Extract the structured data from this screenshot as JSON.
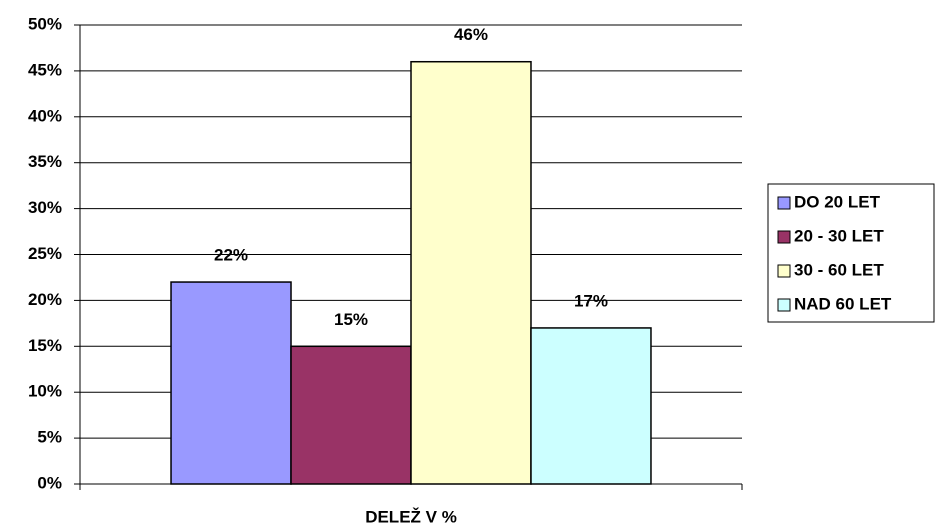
{
  "chart_data": {
    "type": "bar",
    "categories": [
      "DELEŽ V %"
    ],
    "series": [
      {
        "name": "DO 20 LET",
        "color": "#9999ff",
        "values": [
          22
        ],
        "value_labels": [
          "22%"
        ]
      },
      {
        "name": "20 - 30 LET",
        "color": "#993366",
        "values": [
          15
        ],
        "value_labels": [
          "15%"
        ]
      },
      {
        "name": "30 - 60 LET",
        "color": "#ffffcc",
        "values": [
          46
        ],
        "value_labels": [
          "46%"
        ]
      },
      {
        "name": "NAD 60 LET",
        "color": "#ccffff",
        "values": [
          17
        ],
        "value_labels": [
          "17%"
        ]
      }
    ],
    "ylim": [
      0,
      50
    ],
    "yticks": [
      {
        "value": 0,
        "label": "0%"
      },
      {
        "value": 5,
        "label": "5%"
      },
      {
        "value": 10,
        "label": "10%"
      },
      {
        "value": 15,
        "label": "15%"
      },
      {
        "value": 20,
        "label": "20%"
      },
      {
        "value": 25,
        "label": "25%"
      },
      {
        "value": 30,
        "label": "30%"
      },
      {
        "value": 35,
        "label": "35%"
      },
      {
        "value": 40,
        "label": "40%"
      },
      {
        "value": 45,
        "label": "45%"
      },
      {
        "value": 50,
        "label": "50%"
      }
    ],
    "grid": true,
    "legend": "right"
  }
}
